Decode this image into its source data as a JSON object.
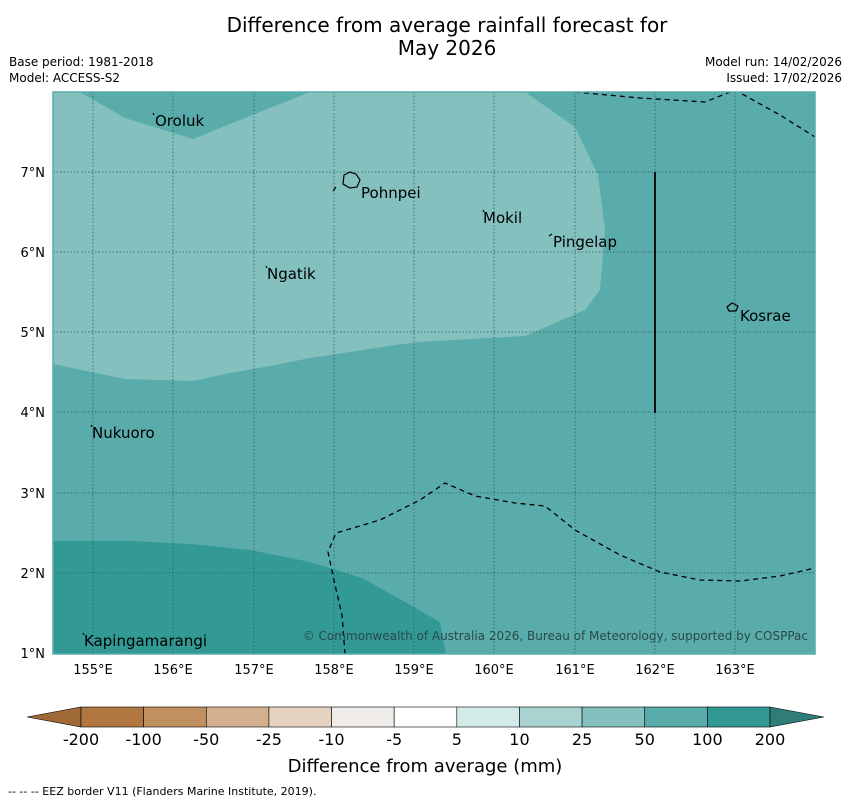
{
  "title_line1": "Difference from average rainfall forecast for",
  "title_line2": "May 2026",
  "base_period": "Base period: 1981-2018",
  "model": "Model: ACCESS-S2",
  "model_run": "Model run: 14/02/2026",
  "issued": "Issued: 17/02/2026",
  "colors": {
    "band_10_25": "#a8d3d0",
    "band_25_50": "#83c0be",
    "band_50_100": "#5aacab",
    "band_100_200": "#329995",
    "frame": "#5aacab"
  },
  "map": {
    "lon_labels": [
      "155°E",
      "156°E",
      "157°E",
      "158°E",
      "159°E",
      "160°E",
      "161°E",
      "162°E",
      "163°E"
    ],
    "lat_labels": [
      "7°N",
      "6°N",
      "5°N",
      "4°N",
      "3°N",
      "2°N",
      "1°N"
    ],
    "places": [
      {
        "name": "Oroluk"
      },
      {
        "name": "Pohnpei"
      },
      {
        "name": "Mokil"
      },
      {
        "name": "Pingelap"
      },
      {
        "name": "Ngatik"
      },
      {
        "name": "Kosrae"
      },
      {
        "name": "Nukuoro"
      },
      {
        "name": "Kapingamarangi"
      }
    ],
    "copyright": "© Commonwealth of Australia 2026, Bureau of Meteorology, supported by COSPPac"
  },
  "legend": {
    "ticks": [
      "-200",
      "-100",
      "-50",
      "-25",
      "-10",
      "-5",
      "5",
      "10",
      "25",
      "50",
      "100",
      "200"
    ],
    "colors": [
      "#b07840",
      "#c09060",
      "#d5b090",
      "#e6d2c0",
      "#eeebe8",
      "#ffffff",
      "#d2ebe8",
      "#a8d3d0",
      "#83c0be",
      "#5aacab",
      "#329995"
    ],
    "left_ext_color": "#9f6a35",
    "right_ext_color": "#2f7d78",
    "label": "Difference from average (mm)"
  },
  "footer": "--  --  -- EEZ border V11 (Flanders Marine Institute, 2019)."
}
